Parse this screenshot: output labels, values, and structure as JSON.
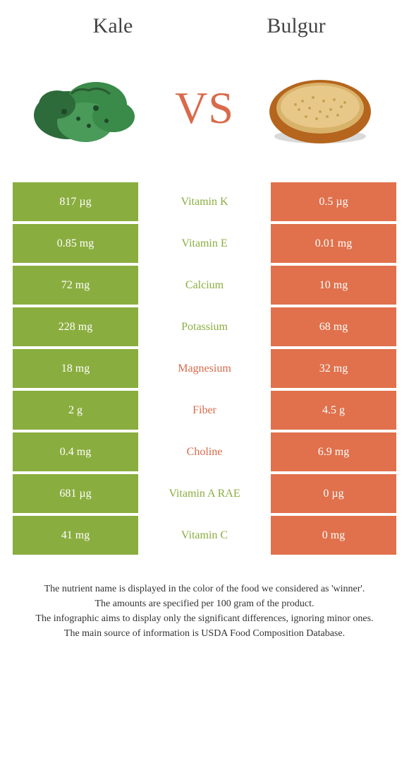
{
  "header": {
    "left_title": "Kale",
    "right_title": "Bulgur",
    "vs_label": "VS"
  },
  "colors": {
    "left_bg": "#8aad3f",
    "right_bg": "#e0714c",
    "left_text": "#8aad3f",
    "right_text": "#d96a4a"
  },
  "nutrients": [
    {
      "name": "Vitamin K",
      "left": "817 µg",
      "right": "0.5 µg",
      "winner": "left"
    },
    {
      "name": "Vitamin E",
      "left": "0.85 mg",
      "right": "0.01 mg",
      "winner": "left"
    },
    {
      "name": "Calcium",
      "left": "72 mg",
      "right": "10 mg",
      "winner": "left"
    },
    {
      "name": "Potassium",
      "left": "228 mg",
      "right": "68 mg",
      "winner": "left"
    },
    {
      "name": "Magnesium",
      "left": "18 mg",
      "right": "32 mg",
      "winner": "right"
    },
    {
      "name": "Fiber",
      "left": "2 g",
      "right": "4.5 g",
      "winner": "right"
    },
    {
      "name": "Choline",
      "left": "0.4 mg",
      "right": "6.9 mg",
      "winner": "right"
    },
    {
      "name": "Vitamin A RAE",
      "left": "681 µg",
      "right": "0 µg",
      "winner": "left"
    },
    {
      "name": "Vitamin C",
      "left": "41 mg",
      "right": "0 mg",
      "winner": "left"
    }
  ],
  "footnotes": [
    "The nutrient name is displayed in the color of the food we considered as 'winner'.",
    "The amounts are specified per 100 gram of the product.",
    "The infographic aims to display only the significant differences, ignoring minor ones.",
    "The main source of information is USDA Food Composition Database."
  ]
}
